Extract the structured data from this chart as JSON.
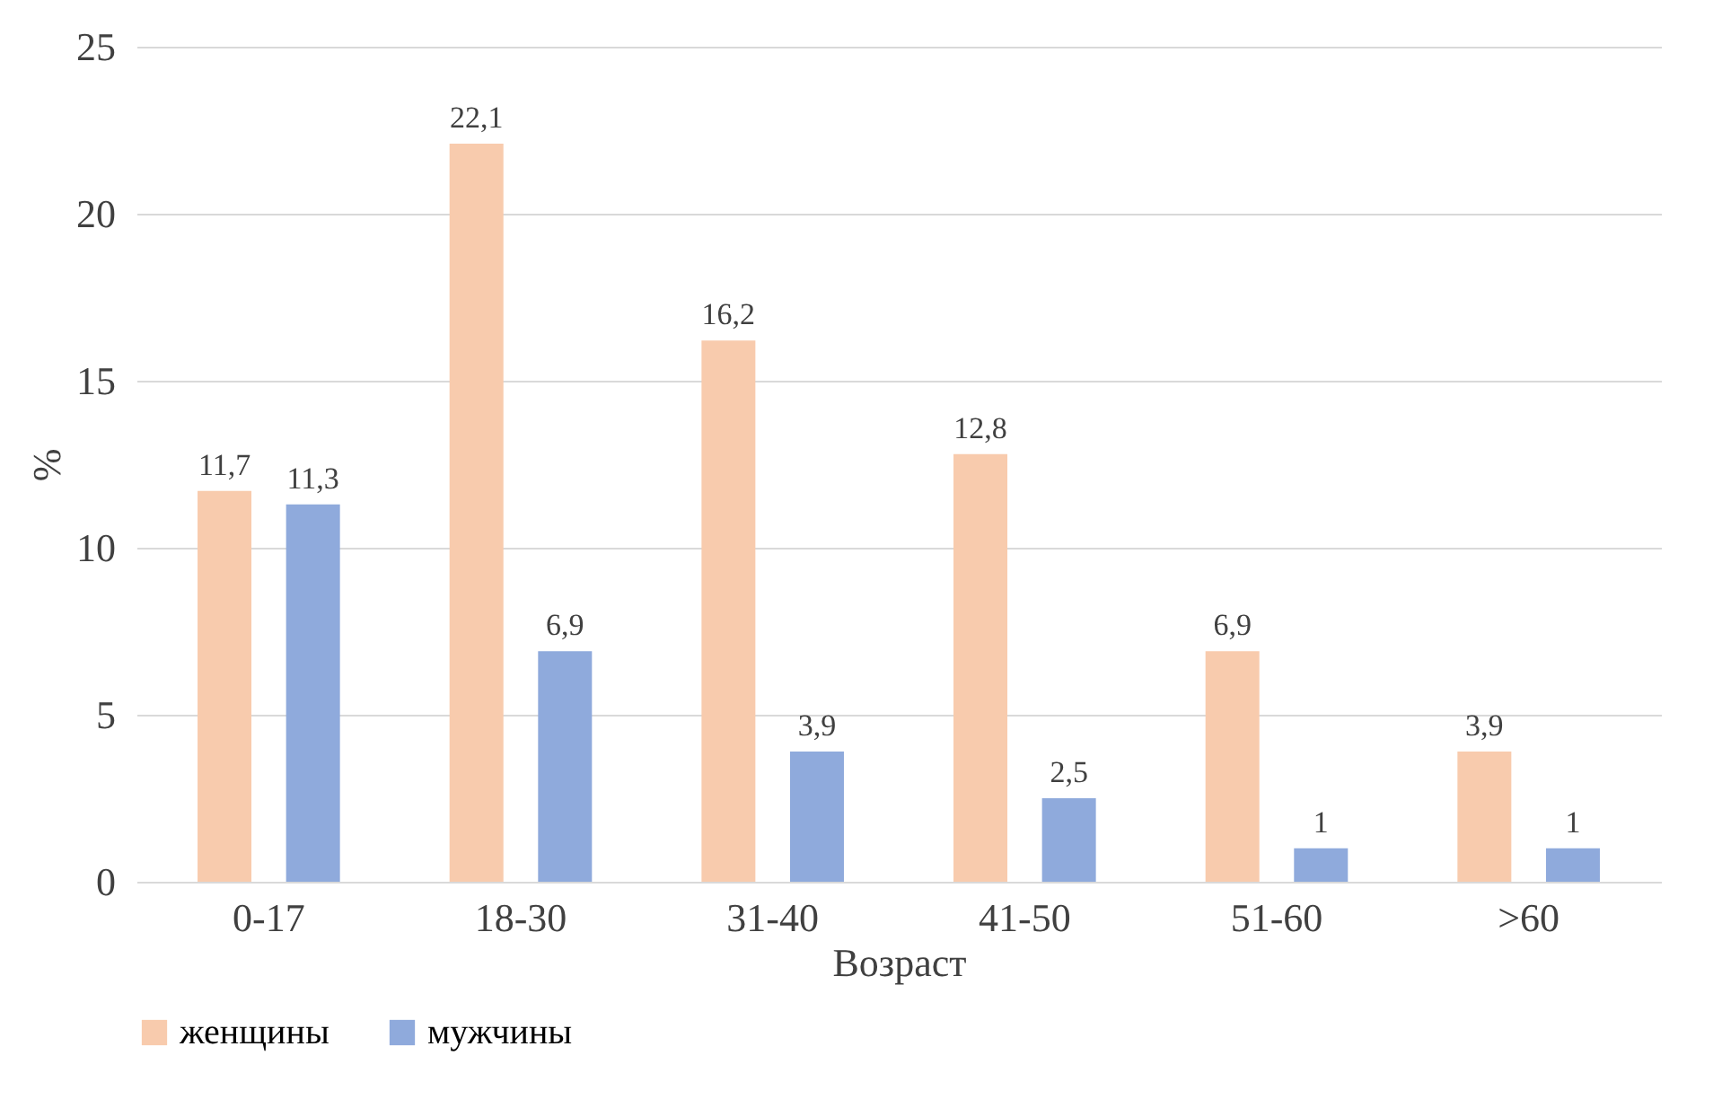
{
  "chart_data": {
    "type": "bar",
    "xlabel": "Возраст",
    "ylabel": "%",
    "categories": [
      "0-17",
      "18-30",
      "31-40",
      "41-50",
      "51-60",
      ">60"
    ],
    "series": [
      {
        "name": "женщины",
        "color": "#f8cbad",
        "values": [
          11.7,
          22.1,
          16.2,
          12.8,
          6.9,
          3.9
        ],
        "value_labels": [
          "11,7",
          "22,1",
          "16,2",
          "12,8",
          "6,9",
          "3,9"
        ]
      },
      {
        "name": "мужчины",
        "color": "#8faadc",
        "values": [
          11.3,
          6.9,
          3.9,
          2.5,
          1,
          1
        ],
        "value_labels": [
          "11,3",
          "6,9",
          "3,9",
          "2,5",
          "1",
          "1"
        ]
      }
    ],
    "ylim": [
      0,
      25
    ],
    "yticks": [
      0,
      5,
      10,
      15,
      20,
      25
    ],
    "grid": "y",
    "legend": "bottom"
  }
}
